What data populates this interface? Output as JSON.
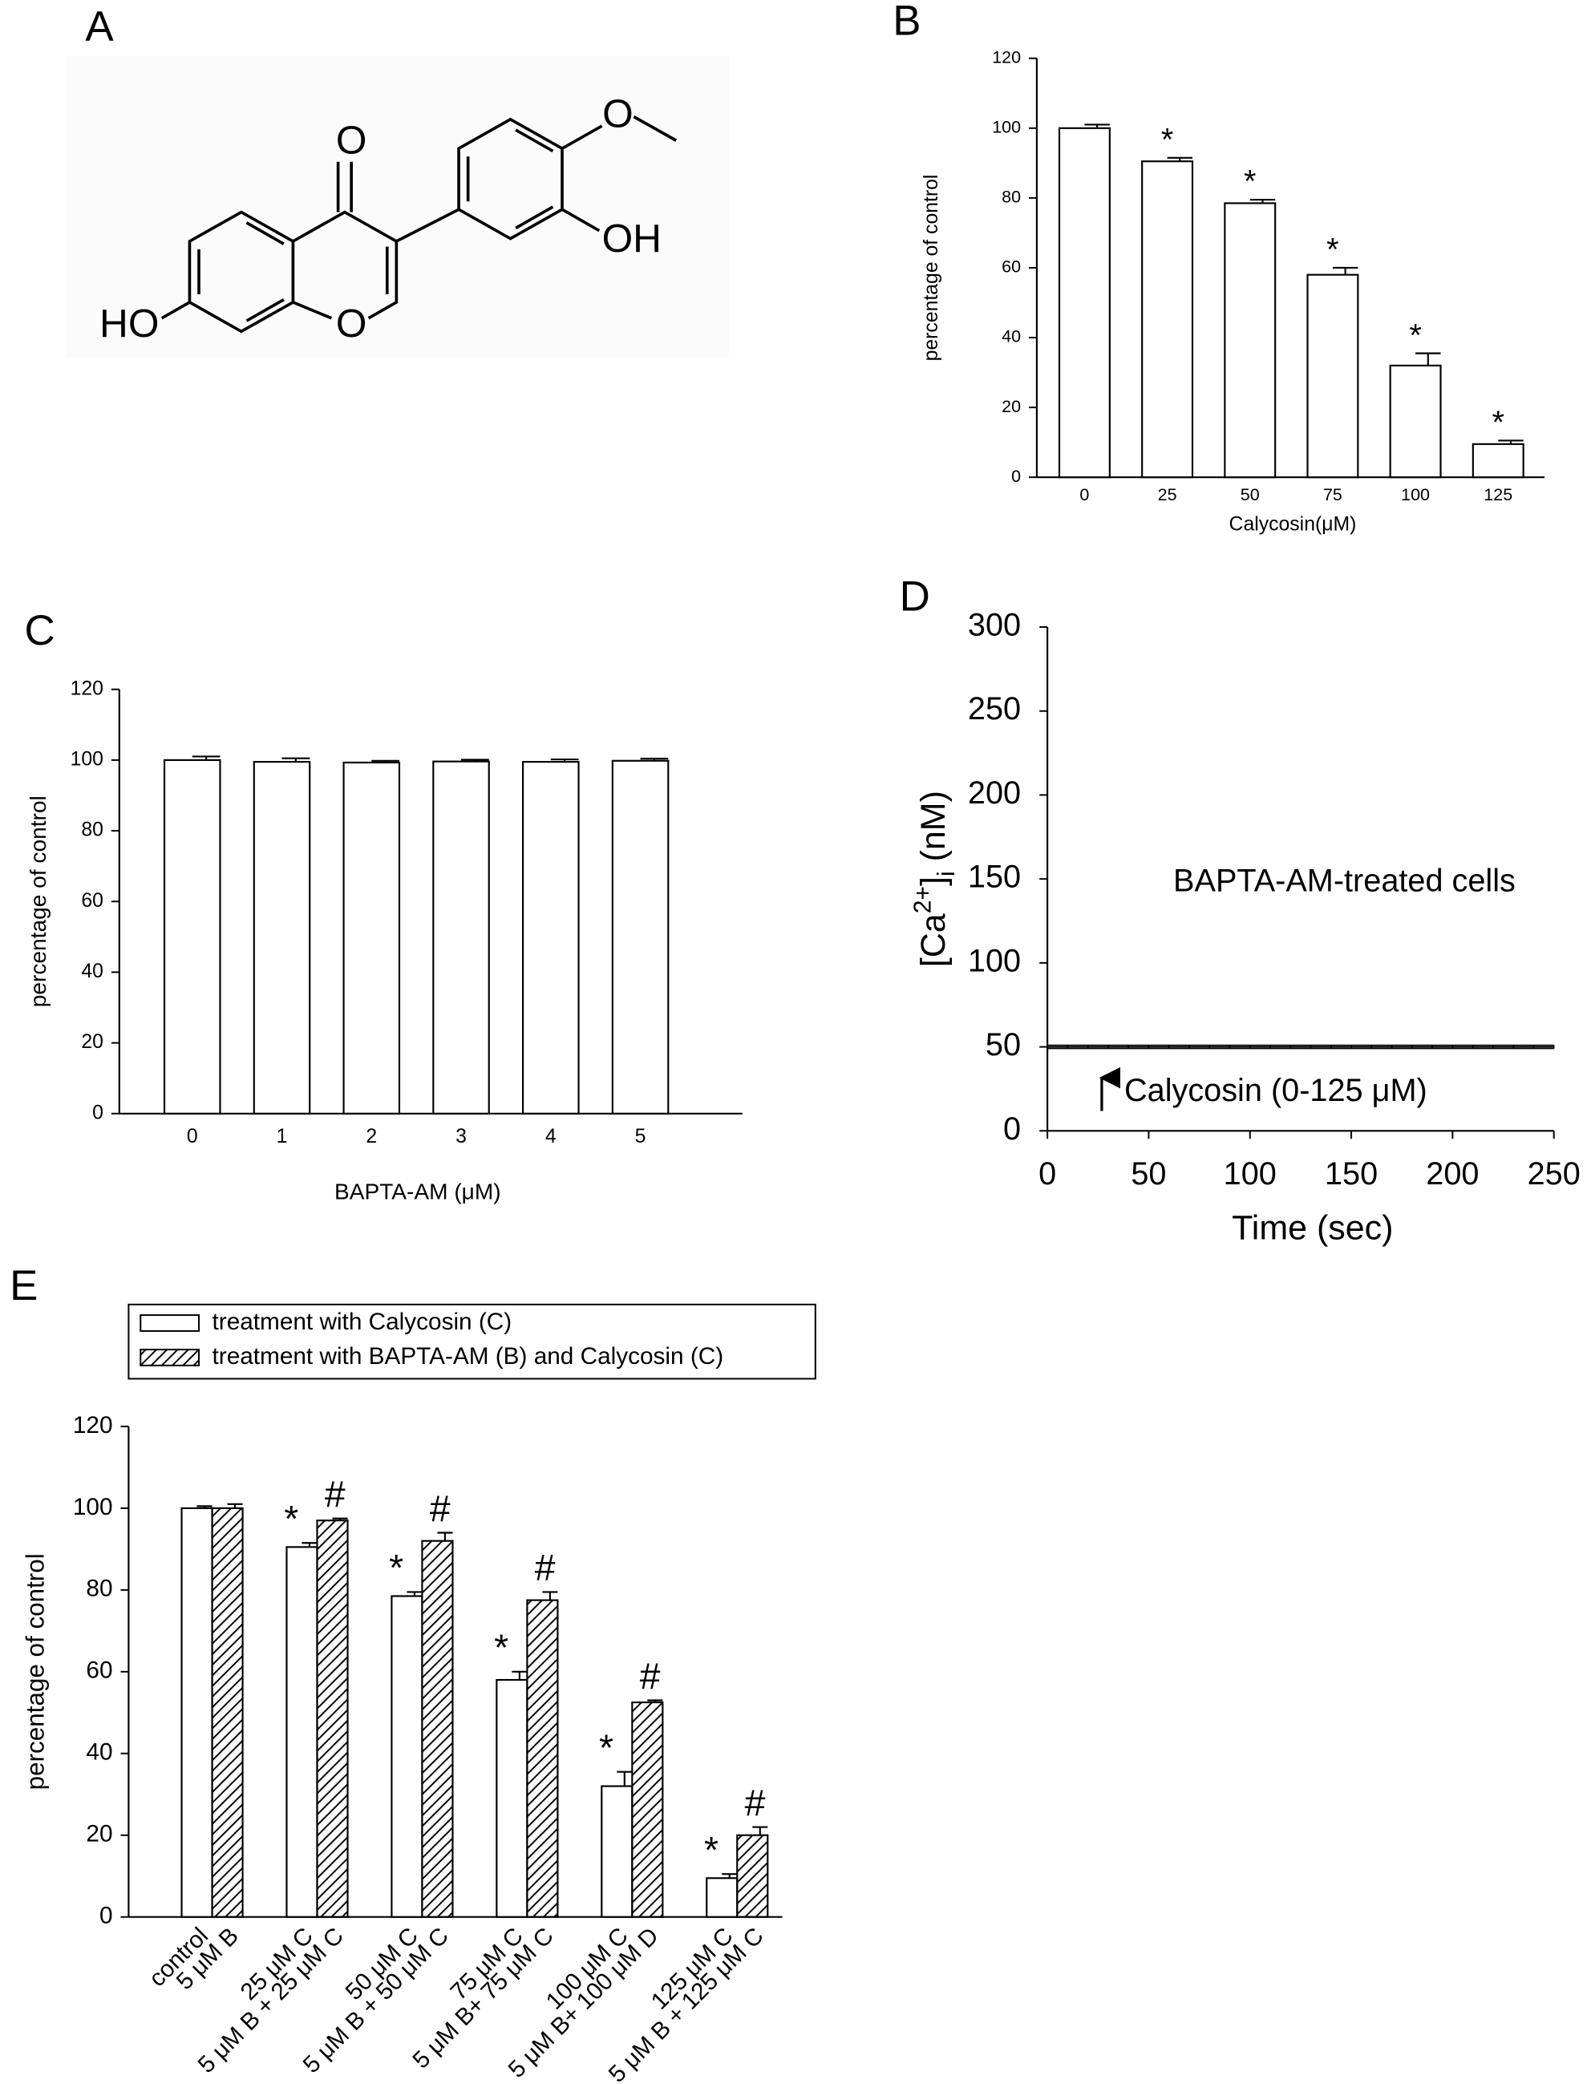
{
  "structure": {
    "panel": "A",
    "labels": [
      "O",
      "O",
      "OH",
      "HO"
    ]
  },
  "chart_data": [
    {
      "type": "bar",
      "panel": "B",
      "xlabel": "Calycosin(μM)",
      "ylabel": "percentage of control",
      "categories": [
        "0",
        "25",
        "50",
        "75",
        "100",
        "125"
      ],
      "values": [
        100,
        90.5,
        78.5,
        58,
        32,
        9.5
      ],
      "errors": [
        1,
        1,
        1,
        2,
        3.5,
        1
      ],
      "markers": [
        null,
        "*",
        "*",
        "*",
        "*",
        "*"
      ],
      "color": "#ffffff",
      "ylim": [
        0,
        120
      ],
      "yticks": [
        0,
        20,
        40,
        60,
        80,
        100,
        120
      ]
    },
    {
      "type": "bar",
      "panel": "C",
      "xlabel": "BAPTA-AM (μM)",
      "ylabel": "percentage of control",
      "categories": [
        "0",
        "1",
        "2",
        "3",
        "4",
        "5"
      ],
      "values": [
        100,
        99.5,
        99.3,
        99.6,
        99.5,
        99.8
      ],
      "errors": [
        1,
        1,
        0.5,
        0.5,
        0.7,
        0.6
      ],
      "color": "#ffffff",
      "ylim": [
        0,
        120
      ],
      "yticks": [
        0,
        20,
        40,
        60,
        80,
        100,
        120
      ]
    },
    {
      "type": "line",
      "panel": "D",
      "xlabel": "Time (sec)",
      "ylabel": {
        "open": "[Ca",
        "sup": "2+",
        "close": "]",
        "sub": "i",
        "unit": " (nM)"
      },
      "annotations": [
        "BAPTA-AM-treated cells",
        "Calycosin (0-125 μM)"
      ],
      "x": [
        0,
        10,
        20,
        30,
        40,
        50,
        60,
        70,
        80,
        90,
        100,
        110,
        120,
        130,
        140,
        150,
        160,
        170,
        180,
        190,
        200,
        210,
        220,
        230,
        240,
        250
      ],
      "series": [
        {
          "color": "#000000",
          "values": [
            50,
            50,
            50,
            50,
            50,
            50,
            50,
            50,
            50,
            50,
            50,
            50,
            50,
            50,
            50,
            50,
            50,
            50,
            50,
            50,
            50,
            50,
            50,
            50,
            50,
            50
          ],
          "errors": [
            1,
            1,
            1,
            1,
            1,
            1,
            1,
            1,
            1,
            1,
            1,
            1,
            1,
            1,
            1,
            1,
            1,
            1,
            1,
            1,
            1,
            1,
            1,
            1,
            1,
            1
          ]
        }
      ],
      "xlim": [
        0,
        250
      ],
      "xticks": [
        0,
        50,
        100,
        150,
        200,
        250
      ],
      "ylim": [
        0,
        300
      ],
      "yticks": [
        0,
        50,
        100,
        150,
        200,
        250,
        300
      ]
    },
    {
      "type": "grouped_bar",
      "panel": "E",
      "ylabel": "percentage of control",
      "series": [
        {
          "name": "treatment with Calycosin (C)",
          "color": "#ffffff",
          "labels": [
            "control",
            "25 μM C",
            "50 μM C",
            "75 μM C",
            "100 μM C",
            "125 μM C"
          ],
          "values": [
            100,
            90.5,
            78.5,
            58,
            32,
            9.5
          ],
          "errors": [
            0.5,
            1,
            1,
            2,
            3.5,
            1
          ],
          "markers": [
            null,
            "*",
            "*",
            "*",
            "*",
            "*"
          ]
        },
        {
          "name": "treatment with BAPTA-AM (B) and Calycosin (C)",
          "color": "#ffffff",
          "pattern": "diagonal",
          "labels": [
            "5 μM B",
            "5 μM B + 25 μM C",
            "5 μM B + 50 μM C",
            "5 μM B+ 75 μM C",
            "5 μM B+ 100 μM D",
            "5 μM B + 125 μM C"
          ],
          "values": [
            100,
            97,
            92,
            77.5,
            52.5,
            20
          ],
          "errors": [
            1,
            0.5,
            2,
            2,
            0.5,
            2
          ],
          "markers": [
            null,
            "#",
            "#",
            "#",
            "#",
            "#"
          ]
        }
      ],
      "ylim": [
        0,
        120
      ],
      "yticks": [
        0,
        20,
        40,
        60,
        80,
        100,
        120
      ]
    }
  ]
}
